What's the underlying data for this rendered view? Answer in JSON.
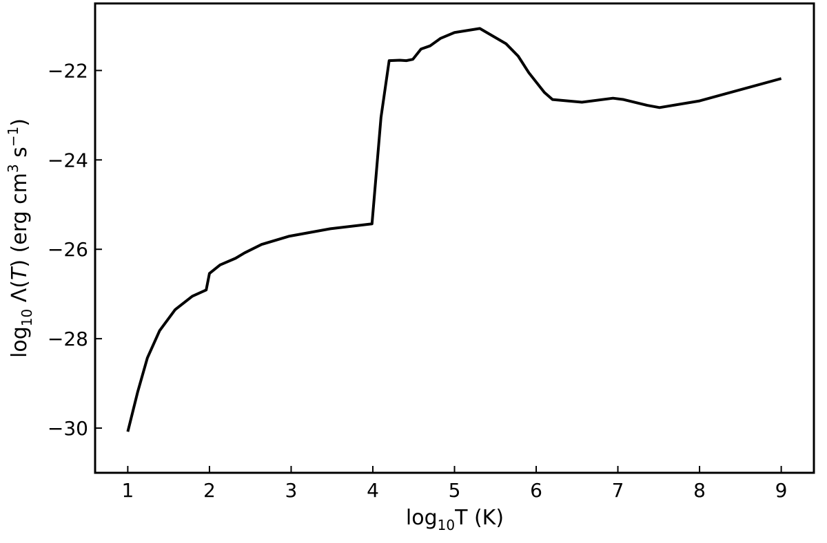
{
  "chart_data": {
    "type": "line",
    "x_label": [
      "log",
      "10",
      "T (K)"
    ],
    "y_label": [
      "log",
      "10",
      " Λ(",
      "T",
      ") (erg cm",
      "3",
      " s",
      "−1",
      ")"
    ],
    "x": [
      1,
      1.12,
      1.24,
      1.39,
      1.58,
      1.79,
      1.96,
      2.0,
      2.13,
      2.32,
      2.43,
      2.64,
      2.97,
      3.48,
      3.99,
      4.1,
      4.2,
      4.33,
      4.41,
      4.49,
      4.59,
      4.7,
      4.83,
      5.0,
      5.31,
      5.46,
      5.63,
      5.78,
      5.91,
      6.1,
      6.2,
      6.56,
      6.94,
      7.07,
      7.36,
      7.51,
      8.0,
      9.0
    ],
    "series": [
      {
        "color": "#000000",
        "values": [
          -30.08,
          -29.2,
          -28.43,
          -27.82,
          -27.35,
          -27.05,
          -26.91,
          -26.54,
          -26.35,
          -26.2,
          -26.08,
          -25.89,
          -25.71,
          -25.54,
          -25.43,
          -23.05,
          -21.78,
          -21.77,
          -21.78,
          -21.75,
          -21.52,
          -21.45,
          -21.28,
          -21.15,
          -21.06,
          -21.22,
          -21.4,
          -21.68,
          -22.05,
          -22.49,
          -22.65,
          -22.71,
          -22.62,
          -22.65,
          -22.78,
          -22.83,
          -22.68,
          -22.18
        ]
      }
    ],
    "xlim": [
      0.6,
      9.4
    ],
    "ylim": [
      -31,
      -20.5
    ],
    "xticks": [
      1,
      2,
      3,
      4,
      5,
      6,
      7,
      8,
      9
    ],
    "yticks": [
      {
        "value": -30,
        "label": "−30"
      },
      {
        "value": -28,
        "label": "−28"
      },
      {
        "value": -26,
        "label": "−26"
      },
      {
        "value": -24,
        "label": "−24"
      },
      {
        "value": -22,
        "label": "−22"
      }
    ],
    "grid": false
  }
}
